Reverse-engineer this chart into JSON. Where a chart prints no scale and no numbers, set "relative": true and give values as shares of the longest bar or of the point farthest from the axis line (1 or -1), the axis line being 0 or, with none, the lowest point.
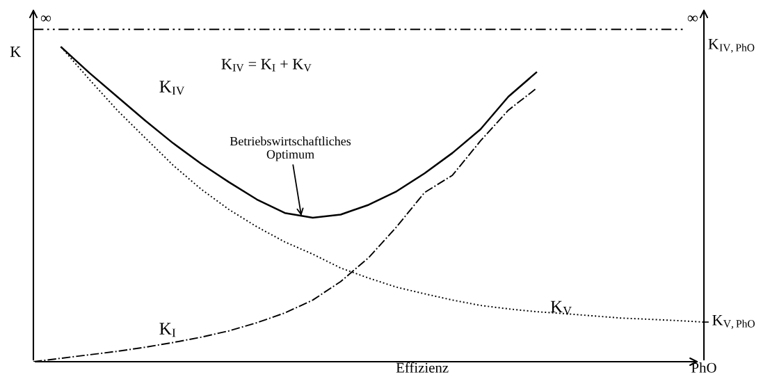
{
  "chart_data": {
    "type": "line",
    "relative": true,
    "xlabel": "Effizienz",
    "ylabel": "K",
    "y2label": "K$_{IV,PhO}$",
    "categories": [
      null,
      null,
      null,
      null,
      null,
      null,
      null,
      null,
      null,
      null,
      null,
      null,
      null,
      null,
      null,
      null,
      null,
      null,
      null,
      null,
      null,
      null,
      null,
      null,
      null
    ],
    "series": [
      {
        "name": "K$_{IV}$",
        "color": "#000000",
        "line_style": "solid",
        "values": [
          null,
          1.0,
          0.919,
          0.843,
          0.767,
          0.695,
          0.63,
          0.571,
          0.516,
          0.473,
          0.458,
          0.468,
          0.499,
          0.542,
          0.599,
          0.664,
          0.739,
          0.843,
          0.92,
          null,
          null,
          null,
          null,
          null,
          null
        ]
      },
      {
        "name": "K$_{I}$",
        "color": "#000000",
        "line_style": "dashdot",
        "values": [
          0,
          0.011,
          0.022,
          0.033,
          0.046,
          0.061,
          0.078,
          0.098,
          0.124,
          0.155,
          0.196,
          0.255,
          0.331,
          0.429,
          0.538,
          0.593,
          0.702,
          0.8,
          0.869,
          null,
          null,
          null,
          null,
          null,
          null
        ]
      },
      {
        "name": "K$_{V}$",
        "color": "#000000",
        "line_style": "dotted",
        "values": [
          null,
          1.0,
          0.898,
          0.8,
          0.712,
          0.625,
          0.549,
          0.484,
          0.429,
          0.381,
          0.342,
          0.298,
          0.266,
          0.237,
          0.216,
          0.196,
          0.179,
          0.168,
          0.159,
          0.153,
          0.146,
          0.139,
          0.135,
          0.131,
          0.126
        ]
      }
    ],
    "ref_lines": [
      {
        "axis": "y",
        "value": 1.057,
        "label": "∞",
        "color": "#000000",
        "line_style": "dashdotdot"
      }
    ],
    "annotations": [
      "K$_{IV}$ = K$_{I}$ + K$_{V}$",
      "Betriebswirtschaftliches\nOptimum",
      "K$_{V,PhO}$",
      "PhO"
    ]
  }
}
